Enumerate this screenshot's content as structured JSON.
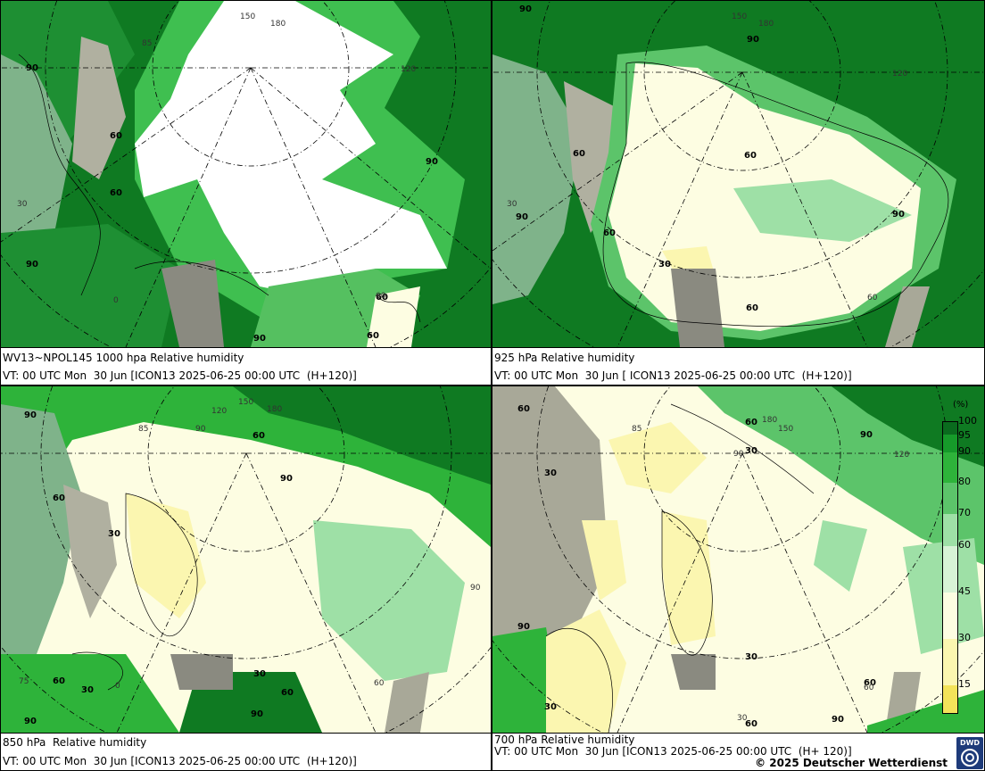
{
  "panels": [
    {
      "title": "WV13~NPOL145 1000 hpa Relative humidity",
      "valid": "VT: 00 UTC Mon  30 Jun [ICON13 2025-06-25 00:00 UTC  (H+120)]",
      "contour_labels": [
        "90",
        "60",
        "60",
        "90",
        "90",
        "60",
        "90",
        "60"
      ],
      "grid_labels": [
        "150",
        "180",
        "85",
        "120",
        "30",
        "0",
        "60"
      ]
    },
    {
      "title": "925 hPa Relative humidity",
      "valid": "VT: 00 UTC Mon  30 Jun [ ICON13 2025-06-25 00:00 UTC  (H+120)]",
      "contour_labels": [
        "90",
        "90",
        "60",
        "60",
        "90",
        "60",
        "30",
        "60",
        "90"
      ],
      "grid_labels": [
        "150",
        "180",
        "120",
        "30",
        "60"
      ]
    },
    {
      "title": "850 hPa  Relative humidity",
      "valid": "VT: 00 UTC Mon  30 Jun [ICON13 2025-06-25 00:00 UTC  (H+120)]",
      "contour_labels": [
        "90",
        "60",
        "60",
        "90",
        "30",
        "30",
        "60",
        "30",
        "90",
        "90",
        "60"
      ],
      "grid_labels": [
        "150",
        "180",
        "120",
        "85",
        "90",
        "0",
        "75",
        "90",
        "60"
      ]
    },
    {
      "title": "700 hPa Relative humidity",
      "valid": "VT: 00 UTC Mon  30 Jun [ICON13 2025-06-25 00:00 UTC  (H+ 120)]",
      "contour_labels": [
        "60",
        "60",
        "30",
        "30",
        "90",
        "30",
        "90",
        "60",
        "30",
        "90",
        "60"
      ],
      "grid_labels": [
        "150",
        "180",
        "120",
        "85",
        "90",
        "60",
        "30"
      ]
    }
  ],
  "legend": {
    "unit": "(%)",
    "levels": [
      "100",
      "95",
      "90",
      "80",
      "70",
      "60",
      "45",
      "30",
      "15"
    ],
    "colors": {
      "100": "#0a6b1e",
      "95": "#169a2a",
      "90": "#2eb33a",
      "80": "#5cc46a",
      "70": "#9ee0a6",
      "60": "#d8f3d6",
      "45": "#fdfde2",
      "30": "#fbf6b0",
      "15": "#f3e35a"
    }
  },
  "copyright": "© 2025 Deutscher Wetterdienst",
  "logo_text": "DWD"
}
